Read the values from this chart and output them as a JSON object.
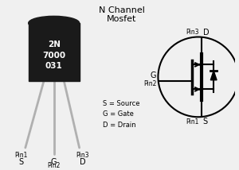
{
  "bg_color": "#f0f0f0",
  "component_text": [
    "2N",
    "7000",
    "031"
  ],
  "body_color": "#1a1a1a",
  "lead_color": "#b0b0b0",
  "text_color": "#000000",
  "white": "#ffffff",
  "title_line1": "N Channel",
  "title_line2": "Mosfet",
  "legend": [
    "S = Source",
    "G = Gate",
    "D = Drain"
  ]
}
